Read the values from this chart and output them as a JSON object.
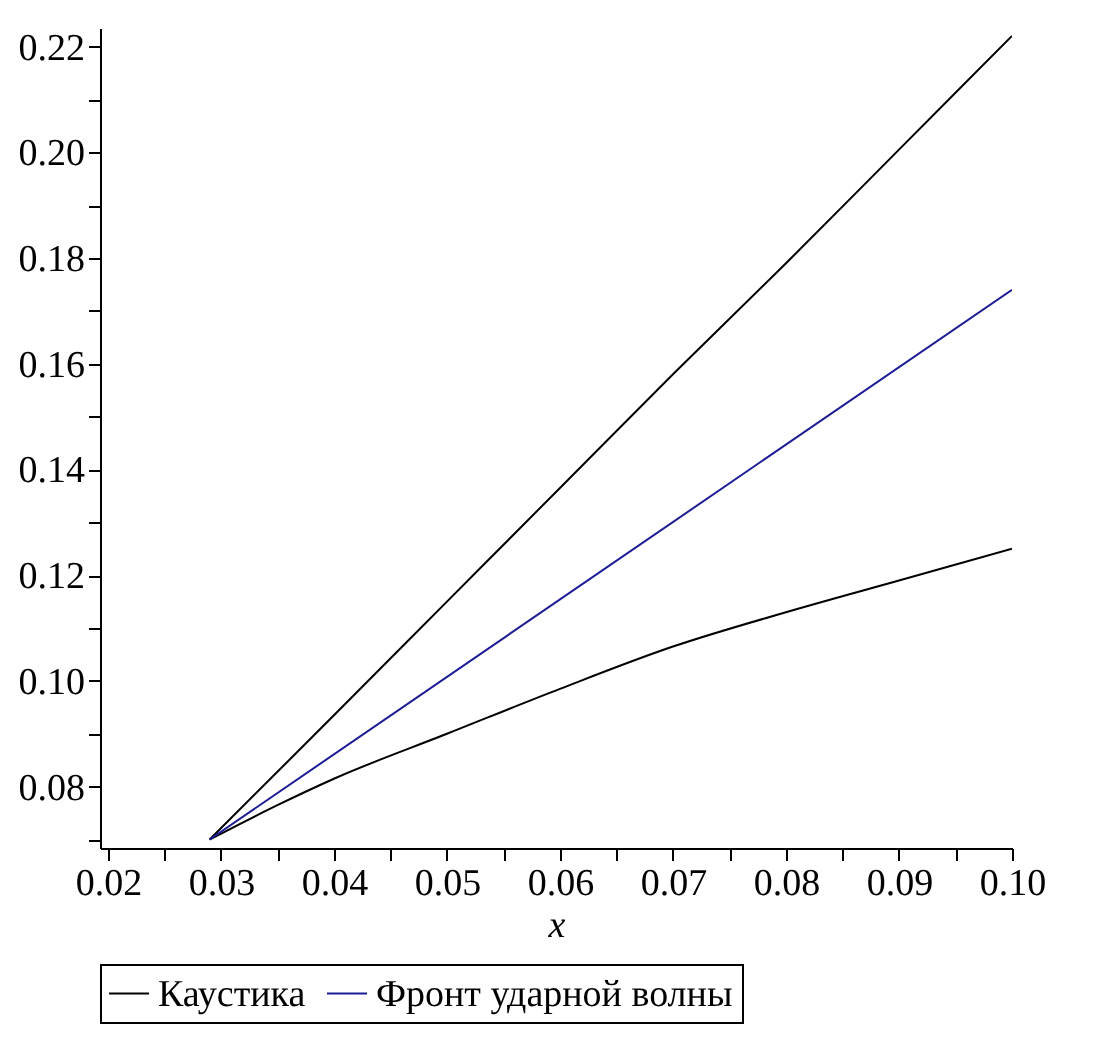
{
  "chart_data": {
    "type": "line",
    "xlabel": "x",
    "xlim": [
      0.0193,
      0.1
    ],
    "ylim": [
      0.0684,
      0.2235
    ],
    "xticks": [
      {
        "value": 0.02,
        "label": "0.02"
      },
      {
        "value": 0.025,
        "label": null
      },
      {
        "value": 0.03,
        "label": "0.03"
      },
      {
        "value": 0.035,
        "label": null
      },
      {
        "value": 0.04,
        "label": "0.04"
      },
      {
        "value": 0.045,
        "label": null
      },
      {
        "value": 0.05,
        "label": "0.05"
      },
      {
        "value": 0.055,
        "label": null
      },
      {
        "value": 0.06,
        "label": "0.06"
      },
      {
        "value": 0.065,
        "label": null
      },
      {
        "value": 0.07,
        "label": "0.07"
      },
      {
        "value": 0.075,
        "label": null
      },
      {
        "value": 0.08,
        "label": "0.08"
      },
      {
        "value": 0.085,
        "label": null
      },
      {
        "value": 0.09,
        "label": "0.09"
      },
      {
        "value": 0.095,
        "label": null
      },
      {
        "value": 0.1,
        "label": "0.10"
      }
    ],
    "yticks": [
      {
        "value": 0.07,
        "label": null
      },
      {
        "value": 0.08,
        "label": "0.08"
      },
      {
        "value": 0.09,
        "label": null
      },
      {
        "value": 0.1,
        "label": "0.10"
      },
      {
        "value": 0.11,
        "label": null
      },
      {
        "value": 0.12,
        "label": "0.12"
      },
      {
        "value": 0.13,
        "label": null
      },
      {
        "value": 0.14,
        "label": "0.14"
      },
      {
        "value": 0.15,
        "label": null
      },
      {
        "value": 0.16,
        "label": "0.16"
      },
      {
        "value": 0.17,
        "label": null
      },
      {
        "value": 0.18,
        "label": "0.18"
      },
      {
        "value": 0.19,
        "label": null
      },
      {
        "value": 0.2,
        "label": "0.20"
      },
      {
        "value": 0.21,
        "label": null
      },
      {
        "value": 0.22,
        "label": "0.22"
      }
    ],
    "grid": false,
    "legend": "bottom",
    "marker": "none",
    "line_style": "solid",
    "series": [
      {
        "name": "Каустика",
        "color": "#000000",
        "x": [
          0.029,
          0.04,
          0.05,
          0.06,
          0.07,
          0.08,
          0.09,
          0.1
        ],
        "values": [
          0.07,
          0.0935,
          0.115,
          0.1365,
          0.158,
          0.179,
          0.2005,
          0.222
        ]
      },
      {
        "color": "#000000",
        "x": [
          0.029,
          0.035,
          0.04,
          0.05,
          0.06,
          0.07,
          0.08,
          0.09,
          0.1
        ],
        "values": [
          0.07,
          0.0765,
          0.0815,
          0.09,
          0.0985,
          0.1065,
          0.113,
          0.119,
          0.125
        ]
      },
      {
        "name": "Фронт ударной волны",
        "color": "#1c1c96",
        "x": [
          0.029,
          0.1
        ],
        "values": [
          0.07,
          0.174
        ]
      }
    ]
  }
}
